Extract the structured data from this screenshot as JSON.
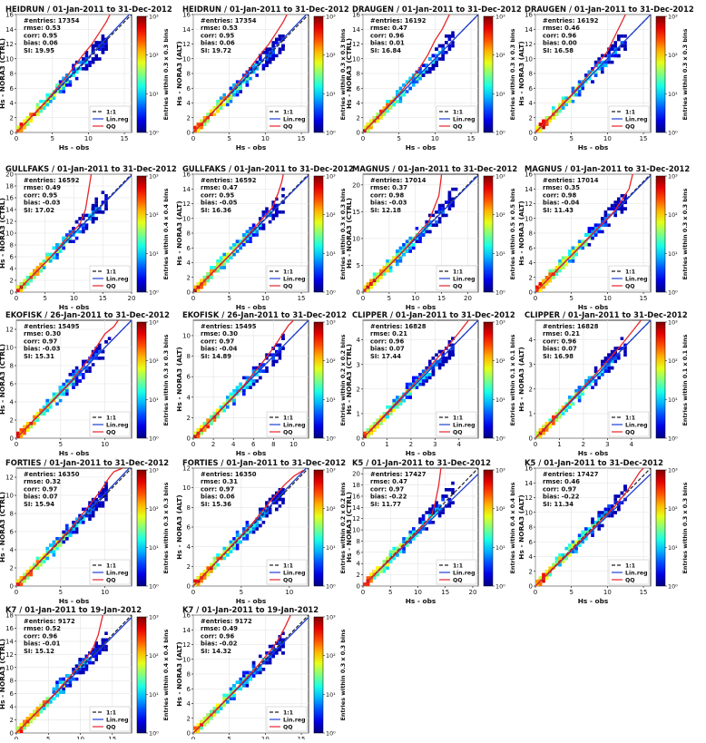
{
  "legend_labels": {
    "one_to_one": "1:1",
    "linreg": "Lin.reg",
    "qq": "QQ"
  },
  "xlabel": "Hs - obs",
  "colorbar_ticks": [
    "10⁰",
    "10¹",
    "10²",
    "10³"
  ],
  "colors": {
    "one_to_one": "#222222",
    "linreg": "#1f3fd1",
    "qq": "#e8262a"
  },
  "chart_data": [
    {
      "type": "heatmap",
      "title": "HEIDRUN / 01-Jan-2011 to 31-Dec-2012",
      "entries": "#entries: 17354",
      "rmse": "rmse:  0.53",
      "corr": "corr:  0.95",
      "bias": "bias:  0.06",
      "si": "SI:  19.95",
      "ylabel": "Hs - NORA3 (CTRL)",
      "cbar_label": "Entries within 0.3 x 0.3 bins",
      "xlim": [
        0,
        16
      ],
      "ylim": [
        0,
        16
      ],
      "xticks": [
        0,
        5,
        10,
        15
      ],
      "yticks": [
        0,
        2,
        4,
        6,
        8,
        10,
        12,
        14,
        16
      ],
      "linreg_slope": 1.02,
      "qq": [
        [
          0,
          0
        ],
        [
          4,
          4.1
        ],
        [
          7,
          7.6
        ],
        [
          9,
          10.2
        ],
        [
          10.5,
          12
        ],
        [
          11.5,
          13.5
        ],
        [
          12.5,
          15
        ],
        [
          13,
          16
        ]
      ]
    },
    {
      "type": "heatmap",
      "title": "HEIDRUN / 01-Jan-2011 to 31-Dec-2012",
      "entries": "#entries: 17354",
      "rmse": "rmse:  0.53",
      "corr": "corr:  0.95",
      "bias": "bias:  0.06",
      "si": "SI:  19.72",
      "ylabel": "Hs - NORA3 (ALT)",
      "cbar_label": "Entries within 0.3 x 0.3 bins",
      "xlim": [
        0,
        16
      ],
      "ylim": [
        0,
        16
      ],
      "xticks": [
        0,
        5,
        10,
        15
      ],
      "yticks": [
        0,
        2,
        4,
        6,
        8,
        10,
        12,
        14,
        16
      ],
      "linreg_slope": 1.02,
      "qq": [
        [
          0,
          0
        ],
        [
          4,
          4.1
        ],
        [
          7,
          7.6
        ],
        [
          9,
          10.2
        ],
        [
          10.5,
          12
        ],
        [
          11.5,
          13.5
        ],
        [
          12.5,
          15
        ],
        [
          13,
          16
        ]
      ]
    },
    {
      "type": "heatmap",
      "title": "DRAUGEN / 01-Jan-2011 to 31-Dec-2012",
      "entries": "#entries: 16192",
      "rmse": "rmse:  0.47",
      "corr": "corr:  0.96",
      "bias": "bias:  0.01",
      "si": "SI:  16.84",
      "ylabel": "Hs - NORA3 (CTRL)",
      "cbar_label": "Entries within 0.3 x 0.3 bins",
      "xlim": [
        0,
        16
      ],
      "ylim": [
        0,
        16
      ],
      "xticks": [
        0,
        5,
        10,
        15
      ],
      "yticks": [
        0,
        2,
        4,
        6,
        8,
        10,
        12,
        14,
        16
      ],
      "linreg_slope": 1.0,
      "qq": [
        [
          0,
          0
        ],
        [
          5,
          5.2
        ],
        [
          7.5,
          8.2
        ],
        [
          9,
          10.5
        ],
        [
          10,
          12.5
        ],
        [
          11,
          14
        ],
        [
          12,
          16
        ]
      ]
    },
    {
      "type": "heatmap",
      "title": "DRAUGEN / 01-Jan-2011 to 31-Dec-2012",
      "entries": "#entries: 16192",
      "rmse": "rmse:  0.46",
      "corr": "corr:  0.96",
      "bias": "bias:  0.00",
      "si": "SI:  16.58",
      "ylabel": "Hs - NORA3 (ALT)",
      "cbar_label": "Entries within 0.3 x 0.3 bins",
      "xlim": [
        0,
        16
      ],
      "ylim": [
        0,
        16
      ],
      "xticks": [
        0,
        5,
        10,
        15
      ],
      "yticks": [
        0,
        2,
        4,
        6,
        8,
        10,
        12,
        14,
        16
      ],
      "linreg_slope": 1.0,
      "qq": [
        [
          0,
          0
        ],
        [
          5,
          5.1
        ],
        [
          8,
          8.5
        ],
        [
          10,
          11
        ],
        [
          11,
          13
        ],
        [
          12,
          15
        ],
        [
          12.5,
          16
        ]
      ]
    },
    {
      "type": "heatmap",
      "title": "GULLFAKS / 01-Jan-2011 to 31-Dec-2012",
      "entries": "#entries: 16592",
      "rmse": "rmse:  0.49",
      "corr": "corr:  0.95",
      "bias": "bias:  -0.03",
      "si": "SI:  17.02",
      "ylabel": "Hs - NORA3 (CTRL)",
      "cbar_label": "Entries within 0.4 x 0.4 bins",
      "xlim": [
        0,
        20
      ],
      "ylim": [
        0,
        20
      ],
      "xticks": [
        0,
        5,
        10,
        15,
        20
      ],
      "yticks": [
        0,
        2,
        4,
        6,
        8,
        10,
        12,
        14,
        16,
        18,
        20
      ],
      "linreg_slope": 0.99,
      "qq": [
        [
          0,
          0
        ],
        [
          6,
          6
        ],
        [
          9,
          9.5
        ],
        [
          11,
          11.5
        ],
        [
          12,
          14
        ],
        [
          12.5,
          17
        ],
        [
          13,
          20
        ]
      ]
    },
    {
      "type": "heatmap",
      "title": "GULLFAKS / 01-Jan-2011 to 31-Dec-2012",
      "entries": "#entries: 16592",
      "rmse": "rmse:  0.47",
      "corr": "corr:  0.95",
      "bias": "bias:  -0.05",
      "si": "SI:  16.36",
      "ylabel": "Hs - NORA3 (ALT)",
      "cbar_label": "Entries within 0.3 x 0.3 bins",
      "xlim": [
        0,
        16
      ],
      "ylim": [
        0,
        16
      ],
      "xticks": [
        0,
        5,
        10,
        15
      ],
      "yticks": [
        0,
        2,
        4,
        6,
        8,
        10,
        12,
        14,
        16
      ],
      "linreg_slope": 0.99,
      "qq": [
        [
          0,
          0
        ],
        [
          6,
          6
        ],
        [
          9,
          9.3
        ],
        [
          11,
          11.5
        ],
        [
          11.8,
          13.5
        ],
        [
          12.3,
          15
        ],
        [
          12.5,
          16
        ]
      ]
    },
    {
      "type": "heatmap",
      "title": "MAGNUS / 01-Jan-2011 to 31-Dec-2012",
      "entries": "#entries: 17014",
      "rmse": "rmse:  0.37",
      "corr": "corr:  0.98",
      "bias": "bias:  -0.03",
      "si": "SI:  12.18",
      "ylabel": "Hs - NORA3 (CTRL)",
      "cbar_label": "Entries within 0.5 x 0.5 bins",
      "xlim": [
        0,
        22
      ],
      "ylim": [
        0,
        22
      ],
      "xticks": [
        0,
        5,
        10,
        15,
        20
      ],
      "yticks": [
        0,
        5,
        10,
        15,
        20
      ],
      "linreg_slope": 0.99,
      "qq": [
        [
          0,
          0
        ],
        [
          8,
          8
        ],
        [
          11,
          11.5
        ],
        [
          12.5,
          13
        ],
        [
          13.5,
          15.5
        ],
        [
          14.5,
          18
        ],
        [
          15,
          22
        ]
      ]
    },
    {
      "type": "heatmap",
      "title": "MAGNUS / 01-Jan-2011 to 31-Dec-2012",
      "entries": "#entries: 17014",
      "rmse": "rmse:  0.35",
      "corr": "corr:  0.98",
      "bias": "bias:  -0.04",
      "si": "SI:  11.43",
      "ylabel": "Hs - NORA3 (ALT)",
      "cbar_label": "Entries within 0.3 x 0.3 bins",
      "xlim": [
        0,
        16
      ],
      "ylim": [
        0,
        16
      ],
      "xticks": [
        0,
        5,
        10,
        15
      ],
      "yticks": [
        0,
        2,
        4,
        6,
        8,
        10,
        12,
        14,
        16
      ],
      "linreg_slope": 0.99,
      "qq": [
        [
          0,
          0
        ],
        [
          8,
          8
        ],
        [
          11,
          11
        ],
        [
          12,
          12.5
        ],
        [
          13,
          14
        ],
        [
          13.5,
          16
        ]
      ]
    },
    {
      "type": "heatmap",
      "title": "EKOFISK / 26-Jan-2011 to 31-Dec-2012",
      "entries": "#entries: 15495",
      "rmse": "rmse:  0.30",
      "corr": "corr:  0.97",
      "bias": "bias:  -0.03",
      "si": "SI:  15.31",
      "ylabel": "Hs - NORA3 (CTRL)",
      "cbar_label": "Entries within 0.3 x 0.3 bins",
      "xlim": [
        0,
        13
      ],
      "ylim": [
        0,
        13
      ],
      "xticks": [
        0,
        5,
        10
      ],
      "yticks": [
        0,
        2,
        4,
        6,
        8,
        10,
        12
      ],
      "linreg_slope": 1.0,
      "qq": [
        [
          0,
          0
        ],
        [
          6,
          6.1
        ],
        [
          8,
          8.5
        ],
        [
          9,
          10
        ],
        [
          10,
          11.5
        ],
        [
          11,
          12.3
        ],
        [
          11.5,
          13
        ]
      ]
    },
    {
      "type": "heatmap",
      "title": "EKOFISK / 26-Jan-2011 to 31-Dec-2012",
      "entries": "#entries: 15495",
      "rmse": "rmse:  0.30",
      "corr": "corr:  0.97",
      "bias": "bias:  -0.04",
      "si": "SI:  14.89",
      "ylabel": "Hs - NORA3 (ALT)",
      "cbar_label": "Entries within 0.2 x 0.2 bins",
      "xlim": [
        0,
        11.5
      ],
      "ylim": [
        0,
        11.5
      ],
      "xticks": [
        0,
        2,
        4,
        6,
        8,
        10
      ],
      "yticks": [
        0,
        2,
        4,
        6,
        8,
        10
      ],
      "linreg_slope": 1.0,
      "qq": [
        [
          0,
          0
        ],
        [
          5,
          5.1
        ],
        [
          7,
          7.5
        ],
        [
          8,
          8.8
        ],
        [
          8.8,
          10
        ],
        [
          9.5,
          11
        ],
        [
          10,
          11.5
        ]
      ]
    },
    {
      "type": "heatmap",
      "title": "CLIPPER / 01-Jan-2011 to 31-Dec-2012",
      "entries": "#entries: 16828",
      "rmse": "rmse:  0.21",
      "corr": "corr:  0.96",
      "bias": "bias:  0.07",
      "si": "SI:  17.44",
      "ylabel": "Hs - NORA3 (CTRL)",
      "cbar_label": "Entries within 0.1 x 0.1 bins",
      "xlim": [
        0,
        4.8
      ],
      "ylim": [
        0,
        4.8
      ],
      "xticks": [
        0,
        1,
        2,
        3,
        4
      ],
      "yticks": [
        0,
        1,
        2,
        3,
        4
      ],
      "linreg_slope": 1.0,
      "qq": [
        [
          0,
          0
        ],
        [
          2.5,
          2.6
        ],
        [
          3.5,
          3.7
        ],
        [
          4,
          4.3
        ],
        [
          4.4,
          4.8
        ]
      ]
    },
    {
      "type": "heatmap",
      "title": "CLIPPER / 01-Jan-2011 to 31-Dec-2012",
      "entries": "#entries: 16828",
      "rmse": "rmse:  0.21",
      "corr": "corr:  0.96",
      "bias": "bias:  0.07",
      "si": "SI:  16.98",
      "ylabel": "Hs - NORA3 (ALT)",
      "cbar_label": "Entries within 0.1 x 0.1 bins",
      "xlim": [
        0,
        4.8
      ],
      "ylim": [
        0,
        4.8
      ],
      "xticks": [
        0,
        1,
        2,
        3,
        4
      ],
      "yticks": [
        0,
        1,
        2,
        3,
        4
      ],
      "linreg_slope": 1.0,
      "qq": [
        [
          0,
          0
        ],
        [
          2.5,
          2.6
        ],
        [
          3.5,
          3.7
        ],
        [
          4,
          4.3
        ],
        [
          4.4,
          4.8
        ]
      ]
    },
    {
      "type": "heatmap",
      "title": "FORTIES / 01-Jan-2011 to 31-Dec-2012",
      "entries": "#entries: 16350",
      "rmse": "rmse:  0.32",
      "corr": "corr:  0.97",
      "bias": "bias:  0.07",
      "si": "SI:  15.94",
      "ylabel": "Hs - NORA3 (CTRL)",
      "cbar_label": "Entries within 0.3 x 0.3 bins",
      "xlim": [
        0,
        13
      ],
      "ylim": [
        0,
        13
      ],
      "xticks": [
        0,
        5,
        10
      ],
      "yticks": [
        0,
        2,
        4,
        6,
        8,
        10,
        12
      ],
      "linreg_slope": 1.02,
      "qq": [
        [
          0,
          0
        ],
        [
          6,
          6.2
        ],
        [
          8,
          8.6
        ],
        [
          9.5,
          10.5
        ],
        [
          10.5,
          12
        ],
        [
          11,
          12.6
        ],
        [
          12,
          13
        ]
      ]
    },
    {
      "type": "heatmap",
      "title": "FORTIES / 01-Jan-2011 to 31-Dec-2012",
      "entries": "#entries: 16350",
      "rmse": "rmse:  0.31",
      "corr": "corr:  0.97",
      "bias": "bias:  0.06",
      "si": "SI:  15.36",
      "ylabel": "Hs - NORA3 (ALT)",
      "cbar_label": "Entries within 0.2 x 0.2 bins",
      "xlim": [
        0,
        12
      ],
      "ylim": [
        0,
        12
      ],
      "xticks": [
        0,
        5,
        10
      ],
      "yticks": [
        0,
        2,
        4,
        6,
        8,
        10,
        12
      ],
      "linreg_slope": 1.02,
      "qq": [
        [
          0,
          0
        ],
        [
          6,
          6.2
        ],
        [
          8,
          8.6
        ],
        [
          9.5,
          10.3
        ],
        [
          10.5,
          11.2
        ],
        [
          11.5,
          11.8
        ]
      ]
    },
    {
      "type": "heatmap",
      "title": "K5 / 01-Jan-2011 to 31-Dec-2012",
      "entries": "#entries: 17427",
      "rmse": "rmse:  0.47",
      "corr": "corr:  0.97",
      "bias": "bias:  -0.22",
      "si": "SI:  11.77",
      "ylabel": "Hs - NORA3 (CTRL)",
      "cbar_label": "Entries within 0.4 x 0.4 bins",
      "xlim": [
        0,
        21
      ],
      "ylim": [
        0,
        21
      ],
      "xticks": [
        0,
        5,
        10,
        15,
        20
      ],
      "yticks": [
        0,
        2,
        4,
        6,
        8,
        10,
        12,
        14,
        16,
        18,
        20
      ],
      "linreg_slope": 0.95,
      "qq": [
        [
          0,
          0
        ],
        [
          8,
          7.8
        ],
        [
          11,
          10.8
        ],
        [
          12.5,
          12.5
        ],
        [
          13.2,
          15
        ],
        [
          13.8,
          18
        ],
        [
          14.2,
          21
        ]
      ]
    },
    {
      "type": "heatmap",
      "title": "K5 / 01-Jan-2011 to 31-Dec-2012",
      "entries": "#entries: 17427",
      "rmse": "rmse:  0.46",
      "corr": "corr:  0.97",
      "bias": "bias:  -0.22",
      "si": "SI:  11.34",
      "ylabel": "Hs - NORA3 (ALT)",
      "cbar_label": "Entries within 0.3 x 0.3 bins",
      "xlim": [
        0,
        16
      ],
      "ylim": [
        0,
        16
      ],
      "xticks": [
        0,
        5,
        10,
        15
      ],
      "yticks": [
        0,
        2,
        4,
        6,
        8,
        10,
        12,
        14,
        16
      ],
      "linreg_slope": 0.95,
      "qq": [
        [
          0,
          0
        ],
        [
          8,
          7.8
        ],
        [
          11,
          10.8
        ],
        [
          12.5,
          12.6
        ],
        [
          13.5,
          14
        ],
        [
          14.5,
          15.5
        ],
        [
          15,
          16
        ]
      ]
    },
    {
      "type": "heatmap",
      "title": "K7 / 01-Jan-2011 to 19-Jan-2012",
      "entries": "#entries: 9172",
      "rmse": "rmse:  0.52",
      "corr": "corr:  0.96",
      "bias": "bias:  -0.01",
      "si": "SI:  15.12",
      "ylabel": "Hs - NORA3 (CTRL)",
      "cbar_label": "Entries within 0.4 x 0.4 bins",
      "xlim": [
        0,
        18
      ],
      "ylim": [
        0,
        18
      ],
      "xticks": [
        0,
        5,
        10,
        15
      ],
      "yticks": [
        0,
        2,
        4,
        6,
        8,
        10,
        12,
        14,
        16,
        18
      ],
      "linreg_slope": 0.98,
      "qq": [
        [
          0,
          0
        ],
        [
          6,
          6
        ],
        [
          9,
          9.3
        ],
        [
          11,
          11.5
        ],
        [
          12,
          13
        ],
        [
          12.8,
          15
        ],
        [
          13.5,
          18
        ]
      ]
    },
    {
      "type": "heatmap",
      "title": "K7 / 01-Jan-2011 to 19-Jan-2012",
      "entries": "#entries: 9172",
      "rmse": "rmse:  0.49",
      "corr": "corr:  0.96",
      "bias": "bias:  -0.02",
      "si": "SI:  14.32",
      "ylabel": "Hs - NORA3 (ALT)",
      "cbar_label": "Entries within 0.3 x 0.3 bins",
      "xlim": [
        0,
        16
      ],
      "ylim": [
        0,
        16
      ],
      "xticks": [
        0,
        5,
        10,
        15
      ],
      "yticks": [
        0,
        2,
        4,
        6,
        8,
        10,
        12,
        14,
        16
      ],
      "linreg_slope": 0.98,
      "qq": [
        [
          0,
          0
        ],
        [
          6,
          6
        ],
        [
          9,
          9.2
        ],
        [
          11,
          11.5
        ],
        [
          12,
          13
        ],
        [
          12.8,
          14.5
        ],
        [
          13.5,
          16
        ]
      ]
    }
  ]
}
